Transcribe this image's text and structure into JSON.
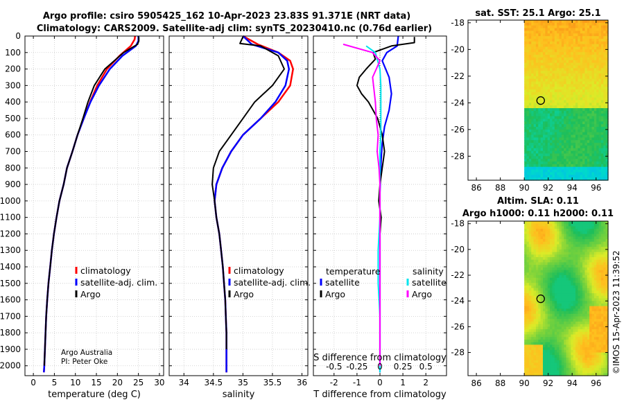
{
  "figure": {
    "title_line1": "Argo profile: csiro 5905425_162 10-Apr-2023 23.83S 91.371E (NRT data)",
    "title_line2": "Climatology: CARS2009. Satellite-adj clim: synTS_20230410.nc (0.76d earlier)",
    "credit": "Argo Australia",
    "pi": "PI: Peter Oke",
    "copyright": "©IMOS 15-Apr-2023 11:39:52",
    "colors": {
      "climatology": "#ff0000",
      "satellite_clim": "#0000ff",
      "argo": "#000000",
      "sat_salinity": "#00e5ee",
      "argo_salinity_diff": "#ff00ff"
    }
  },
  "chart_data": [
    {
      "id": "temperature",
      "type": "line",
      "xlabel": "temperature (deg C)",
      "xlim": [
        -2,
        31
      ],
      "xticks": [
        0,
        5,
        10,
        15,
        20,
        25,
        30
      ],
      "ylim": [
        2060,
        0
      ],
      "yticks": [
        0,
        100,
        200,
        300,
        400,
        500,
        600,
        700,
        800,
        900,
        1000,
        1100,
        1200,
        1300,
        1400,
        1500,
        1600,
        1700,
        1800,
        1900,
        2000
      ],
      "legend": [
        "climatology",
        "satellite-adj. clim.",
        "Argo"
      ],
      "series": [
        {
          "name": "climatology",
          "color": "#ff0000",
          "width": 2.5,
          "x": [
            24.2,
            24.1,
            23.2,
            20.5,
            17.5,
            15.2,
            13.5,
            12.0,
            10.5,
            9.3,
            8.0,
            7.2,
            6.2,
            5.5,
            4.9,
            4.4,
            4.0,
            3.6,
            3.3,
            3.05,
            2.9,
            2.75,
            2.6,
            2.5
          ],
          "y": [
            0,
            20,
            60,
            120,
            200,
            300,
            400,
            500,
            600,
            700,
            800,
            900,
            1000,
            1100,
            1200,
            1300,
            1400,
            1500,
            1600,
            1700,
            1800,
            1900,
            2000,
            2040
          ]
        },
        {
          "name": "satellite-adj. clim.",
          "color": "#0000ff",
          "width": 2.5,
          "x": [
            25.0,
            25.0,
            24.4,
            21.2,
            18.2,
            15.6,
            13.6,
            12.0,
            10.5,
            9.3,
            8.0,
            7.2,
            6.2,
            5.5,
            4.9,
            4.4,
            4.0,
            3.6,
            3.3,
            3.05,
            2.9,
            2.75,
            2.6,
            2.5
          ],
          "y": [
            0,
            30,
            60,
            120,
            200,
            300,
            400,
            500,
            600,
            700,
            800,
            900,
            1000,
            1100,
            1200,
            1300,
            1400,
            1500,
            1600,
            1700,
            1800,
            1900,
            2000,
            2040
          ]
        },
        {
          "name": "Argo",
          "color": "#000000",
          "width": 2,
          "x": [
            25.1,
            25.1,
            24.8,
            21.5,
            17.0,
            14.5,
            13.0,
            11.8,
            10.5,
            9.3,
            8.0,
            7.2,
            6.2,
            5.5,
            4.9,
            4.4,
            4.0,
            3.6,
            3.3,
            3.05,
            2.9,
            2.75,
            2.6
          ],
          "y": [
            5,
            30,
            50,
            100,
            200,
            300,
            400,
            500,
            600,
            700,
            800,
            900,
            1000,
            1100,
            1200,
            1300,
            1400,
            1500,
            1600,
            1700,
            1800,
            1900,
            2000
          ]
        }
      ]
    },
    {
      "id": "salinity",
      "type": "line",
      "xlabel": "salinity",
      "xlim": [
        33.75,
        36.1
      ],
      "xticks": [
        34,
        34.5,
        35,
        35.5,
        36
      ],
      "ylim": [
        2060,
        0
      ],
      "legend": [
        "climatology",
        "satellite-adj. clim.",
        "Argo"
      ],
      "series": [
        {
          "name": "climatology",
          "color": "#ff0000",
          "width": 2.5,
          "x": [
            35.0,
            35.25,
            35.6,
            35.8,
            35.85,
            35.8,
            35.6,
            35.3,
            35.0,
            34.8,
            34.65,
            34.55,
            34.52,
            34.55,
            34.6,
            34.63,
            34.66,
            34.68,
            34.7,
            34.71,
            34.72,
            34.72,
            34.72,
            34.72
          ],
          "y": [
            0,
            50,
            100,
            150,
            200,
            300,
            400,
            500,
            600,
            700,
            800,
            900,
            1000,
            1100,
            1200,
            1300,
            1400,
            1500,
            1600,
            1700,
            1800,
            1900,
            2000,
            2040
          ]
        },
        {
          "name": "satellite-adj. clim.",
          "color": "#0000ff",
          "width": 2.5,
          "x": [
            35.0,
            35.15,
            35.6,
            35.75,
            35.78,
            35.72,
            35.55,
            35.3,
            35.0,
            34.8,
            34.65,
            34.55,
            34.52,
            34.55,
            34.6,
            34.63,
            34.66,
            34.68,
            34.7,
            34.71,
            34.72,
            34.72,
            34.72,
            34.72
          ],
          "y": [
            0,
            50,
            100,
            150,
            200,
            300,
            400,
            500,
            600,
            700,
            800,
            900,
            1000,
            1100,
            1200,
            1300,
            1400,
            1500,
            1600,
            1700,
            1800,
            1900,
            2000,
            2040
          ]
        },
        {
          "name": "Argo",
          "color": "#000000",
          "width": 2,
          "x": [
            35.0,
            34.95,
            35.3,
            35.6,
            35.7,
            35.5,
            35.2,
            35.0,
            34.8,
            34.6,
            34.5,
            34.48,
            34.52,
            34.55,
            34.6,
            34.63,
            34.66,
            34.68,
            34.7,
            34.71,
            34.72,
            34.72
          ],
          "y": [
            5,
            45,
            60,
            120,
            200,
            300,
            400,
            500,
            600,
            700,
            800,
            900,
            1000,
            1100,
            1200,
            1300,
            1400,
            1500,
            1600,
            1700,
            1800,
            1900
          ]
        }
      ]
    },
    {
      "id": "differences",
      "type": "line",
      "xlabel": "T difference from climatology",
      "xlabel_top": "S difference from climatology",
      "xlim": [
        -2.9,
        2.9
      ],
      "xticks": [
        -2,
        -1,
        0,
        1,
        2
      ],
      "top_tick_values": [
        -0.5,
        -0.25,
        0,
        0.25,
        0.5
      ],
      "top_tick_labels": [
        "-0.5",
        "-0.25",
        "0",
        "0.25",
        "0.5"
      ],
      "ylim": [
        2060,
        0
      ],
      "legend_temperature_title": "temperature",
      "legend_salinity_title": "salinity",
      "legend_temperature": [
        "satellite",
        "Argo"
      ],
      "legend_salinity": [
        "satellite",
        "Argo"
      ],
      "series": [
        {
          "name": "T satellite",
          "color": "#0000ff",
          "width": 2.2,
          "x": [
            0.8,
            0.75,
            0.3,
            0.1,
            0.4,
            0.5,
            0.4,
            0.2,
            0.1,
            0.05,
            0.02,
            0.0,
            0.0,
            0.0,
            0.0,
            0.0,
            0.0,
            0.0,
            0.0,
            0.0,
            0.0
          ],
          "y": [
            0,
            60,
            100,
            150,
            250,
            350,
            450,
            550,
            650,
            750,
            850,
            950,
            1050,
            1150,
            1250,
            1350,
            1500,
            1650,
            1800,
            1950,
            2040
          ]
        },
        {
          "name": "T Argo",
          "color": "#000000",
          "width": 2,
          "x": [
            1.5,
            1.5,
            0.5,
            -0.3,
            -0.2,
            -0.6,
            -0.9,
            -1.0,
            -0.8,
            -0.5,
            -0.3,
            -0.1,
            0.1,
            0.2,
            0.1,
            0.0,
            -0.05,
            0.05,
            0.0,
            0.0,
            0.0,
            0.0,
            0.0,
            0.0
          ],
          "y": [
            5,
            40,
            60,
            100,
            140,
            200,
            250,
            300,
            350,
            400,
            450,
            500,
            600,
            700,
            800,
            900,
            1000,
            1100,
            1200,
            1400,
            1600,
            1800,
            2000,
            2010
          ]
        },
        {
          "name": "S satellite",
          "color": "#00e5ee",
          "width": 2,
          "x": [
            -0.15,
            -0.05,
            0.0,
            0.01,
            0.01,
            0.01,
            0.01,
            0.0,
            0.0,
            0.0,
            0.0,
            0.0,
            -0.02,
            -0.02,
            0.0,
            0.0,
            0.0
          ],
          "y": [
            60,
            100,
            200,
            300,
            400,
            500,
            600,
            700,
            800,
            900,
            1000,
            1100,
            1300,
            1500,
            1700,
            1900,
            2040
          ]
        },
        {
          "name": "S Argo",
          "color": "#ff00ff",
          "width": 2,
          "x": [
            -0.4,
            -0.08,
            0.0,
            -0.08,
            -0.05,
            -0.04,
            -0.02,
            -0.03,
            -0.01,
            0.0,
            0.0,
            0.0,
            0.0,
            0.0,
            0.0
          ],
          "y": [
            50,
            100,
            150,
            250,
            400,
            500,
            600,
            700,
            800,
            900,
            1000,
            1200,
            1500,
            1800,
            2000
          ]
        }
      ]
    },
    {
      "id": "sst_map",
      "type": "heatmap",
      "title": "sat. SST: 25.1 Argo: 25.1",
      "xlim": [
        85.3,
        97
      ],
      "ylim": [
        -29.8,
        -17.8
      ],
      "xticks": [
        86,
        88,
        90,
        92,
        94,
        96
      ],
      "yticks": [
        -18,
        -20,
        -22,
        -24,
        -26,
        -28
      ],
      "data_lon_range": [
        90,
        97
      ],
      "float_position": [
        91.371,
        -23.83
      ]
    },
    {
      "id": "sla_map",
      "type": "heatmap",
      "title_line1": "Altim. SLA: 0.11",
      "title_line2": "Argo h1000: 0.11 h2000: 0.11",
      "xlim": [
        85.3,
        97
      ],
      "ylim": [
        -29.8,
        -17.8
      ],
      "xticks": [
        86,
        88,
        90,
        92,
        94,
        96
      ],
      "yticks": [
        -18,
        -20,
        -22,
        -24,
        -26,
        -28
      ],
      "data_lon_range": [
        90,
        97
      ],
      "float_position": [
        91.371,
        -23.83
      ]
    }
  ]
}
